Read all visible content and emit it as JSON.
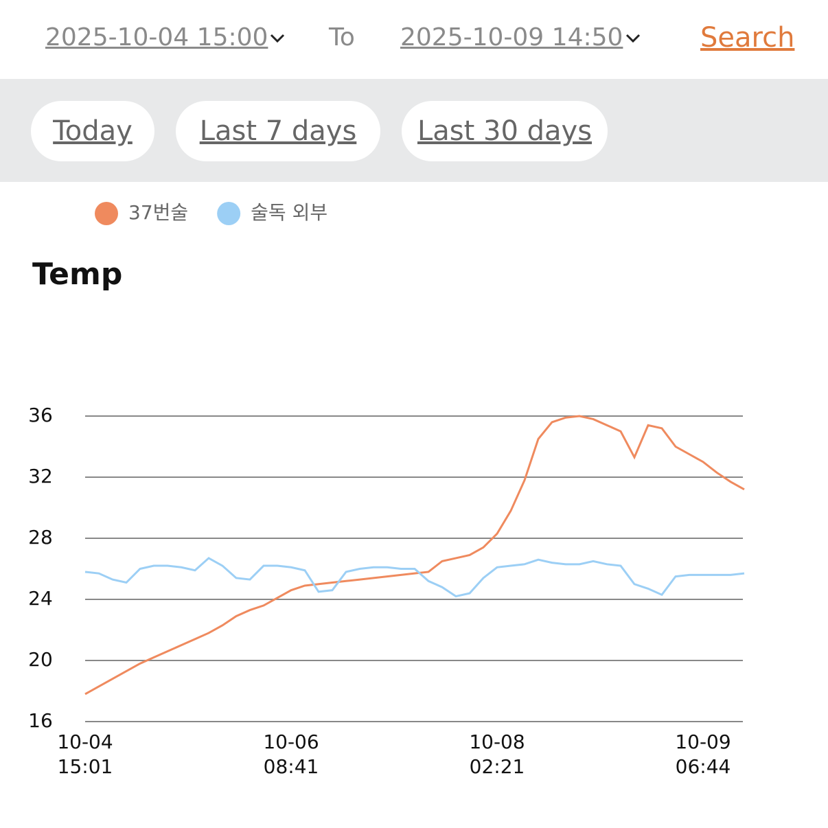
{
  "header": {
    "from": "2025-10-04 15:00",
    "to_label": "To",
    "to": "2025-10-09 14:50",
    "search": "Search"
  },
  "quick_ranges": [
    "Today",
    "Last 7 days",
    "Last 30 days"
  ],
  "chart_data": {
    "type": "line",
    "title": "Temp",
    "categories": [
      "10-04 15:01",
      null,
      null,
      null,
      null,
      null,
      null,
      null,
      null,
      null,
      null,
      null,
      null,
      null,
      null,
      "10-06 08:41",
      null,
      null,
      null,
      null,
      null,
      null,
      null,
      null,
      null,
      null,
      null,
      null,
      null,
      null,
      "10-08 02:21",
      null,
      null,
      null,
      null,
      null,
      null,
      null,
      null,
      null,
      null,
      null,
      null,
      null,
      null,
      "10-09 06:44",
      null,
      null,
      null
    ],
    "series": [
      {
        "name": "37번술",
        "color": "#ef8a5e",
        "values": [
          17.8,
          18.3,
          18.8,
          19.3,
          19.8,
          20.2,
          20.6,
          21.0,
          21.4,
          21.8,
          22.3,
          22.9,
          23.3,
          23.6,
          24.1,
          24.6,
          24.9,
          25.0,
          25.1,
          25.2,
          25.3,
          25.4,
          25.5,
          25.6,
          25.7,
          25.8,
          26.5,
          26.7,
          26.9,
          27.4,
          28.3,
          29.8,
          31.8,
          34.5,
          35.6,
          35.9,
          36.0,
          35.8,
          35.4,
          35.0,
          33.3,
          35.4,
          35.2,
          34.0,
          33.5,
          33.0,
          32.3,
          31.7,
          31.2
        ]
      },
      {
        "name": "술독 외부",
        "color": "#9ccff5",
        "values": [
          25.8,
          25.7,
          25.3,
          25.1,
          26.0,
          26.2,
          26.2,
          26.1,
          25.9,
          26.7,
          26.2,
          25.4,
          25.3,
          26.2,
          26.2,
          26.1,
          25.9,
          24.5,
          24.6,
          25.8,
          26.0,
          26.1,
          26.1,
          26.0,
          26.0,
          25.2,
          24.8,
          24.2,
          24.4,
          25.4,
          26.1,
          26.2,
          26.3,
          26.6,
          26.4,
          26.3,
          26.3,
          26.5,
          26.3,
          26.2,
          25.0,
          24.7,
          24.3,
          25.5,
          25.6,
          25.6,
          25.6,
          25.6,
          25.7
        ]
      }
    ],
    "ylim": [
      16,
      36
    ],
    "yticks": [
      16,
      20,
      24,
      28,
      32,
      36
    ],
    "grid": true,
    "legend": "top-left"
  }
}
